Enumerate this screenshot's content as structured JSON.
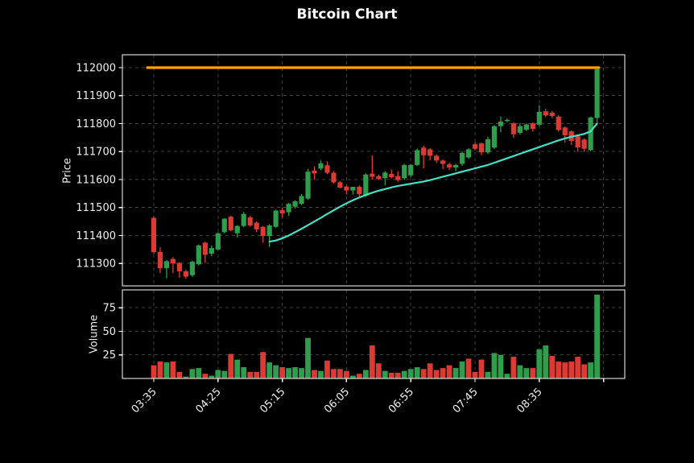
{
  "title": "Bitcoin Chart",
  "chart_data": {
    "type": "candlestick",
    "title": "Bitcoin Chart",
    "style": "dark",
    "grid": true,
    "interval": "5min",
    "x_ticks": {
      "labels": [
        "03:35",
        "04:25",
        "05:15",
        "06:05",
        "06:55",
        "07:45",
        "08:35",
        ""
      ],
      "candle_indices": [
        0,
        10,
        20,
        30,
        40,
        50,
        60,
        70
      ]
    },
    "panels": {
      "price": {
        "ylabel": "Price",
        "ticks": [
          111300,
          111400,
          111500,
          111600,
          111700,
          111800,
          111900,
          112000
        ],
        "ylim": [
          111220,
          112046
        ]
      },
      "volume": {
        "ylabel": "Volume",
        "ticks": [
          25,
          50,
          75
        ],
        "ylim": [
          0,
          94
        ]
      }
    },
    "hline": {
      "value": 112000,
      "color": "#ffa500"
    },
    "ma_line": {
      "color": "#46e0c8",
      "values": [
        null,
        null,
        null,
        null,
        null,
        null,
        null,
        null,
        null,
        null,
        null,
        null,
        null,
        null,
        null,
        null,
        null,
        null,
        111378,
        111382,
        111390,
        111400,
        111412,
        111424,
        111437,
        111450,
        111463,
        111477,
        111490,
        111503,
        111515,
        111526,
        111536,
        111545,
        111553,
        111560,
        111566,
        111572,
        111577,
        111581,
        111585,
        111589,
        111593,
        111598,
        111604,
        111610,
        111616,
        111622,
        111628,
        111634,
        111640,
        111646,
        111652,
        111660,
        111668,
        111676,
        111684,
        111692,
        111700,
        111708,
        111716,
        111724,
        111732,
        111740,
        111747,
        111753,
        111758,
        111763,
        111772,
        111800
      ]
    },
    "series": {
      "open": [
        111463,
        111341,
        111283,
        111316,
        111302,
        111272,
        111258,
        111297,
        111374,
        111335,
        111350,
        111412,
        111467,
        111408,
        111434,
        111465,
        111446,
        111431,
        111398,
        111431,
        111491,
        111483,
        111503,
        111513,
        111532,
        111632,
        111639,
        111651,
        111624,
        111590,
        111575,
        111561,
        111574,
        111542,
        111621,
        111612,
        111605,
        111620,
        111612,
        111605,
        111615,
        111652,
        111714,
        111708,
        111685,
        111668,
        111654,
        111643,
        111656,
        111679,
        111726,
        111729,
        111697,
        111714,
        111791,
        111812,
        111801,
        111767,
        111778,
        111801,
        111796,
        111844,
        111839,
        111825,
        111786,
        111772,
        111755,
        111743,
        111705,
        111820
      ],
      "high": [
        111468,
        111358,
        111312,
        111322,
        111305,
        111278,
        111310,
        111368,
        111378,
        111364,
        111411,
        111462,
        111471,
        111437,
        111484,
        111470,
        111450,
        111434,
        111440,
        111492,
        111500,
        111516,
        111526,
        111548,
        111638,
        111647,
        111668,
        111665,
        111630,
        111595,
        111578,
        111572,
        111578,
        111622,
        111686,
        111618,
        111630,
        111636,
        111630,
        111656,
        111656,
        111711,
        111721,
        111712,
        111690,
        111672,
        111660,
        111656,
        111700,
        111712,
        111734,
        111732,
        111753,
        111794,
        111825,
        111818,
        111805,
        111801,
        111800,
        111805,
        111866,
        111853,
        111845,
        111830,
        111790,
        111775,
        111760,
        111748,
        111824,
        111997
      ],
      "low": [
        111335,
        111266,
        111247,
        111266,
        111249,
        111246,
        111252,
        111293,
        111302,
        111326,
        111348,
        111408,
        111415,
        111393,
        111430,
        111432,
        111412,
        111374,
        111359,
        111428,
        111465,
        111470,
        111497,
        111509,
        111528,
        111599,
        111634,
        111619,
        111585,
        111568,
        111547,
        111546,
        111540,
        111538,
        111600,
        111597,
        111580,
        111604,
        111592,
        111599,
        111609,
        111648,
        111640,
        111669,
        111659,
        111637,
        111634,
        111630,
        111649,
        111674,
        111704,
        111687,
        111691,
        111709,
        111769,
        111805,
        111749,
        111761,
        111773,
        111771,
        111791,
        111823,
        111819,
        111771,
        111732,
        111723,
        111699,
        111699,
        111701,
        111804
      ],
      "close": [
        111341,
        111283,
        111308,
        111300,
        111272,
        111253,
        111306,
        111364,
        111331,
        111355,
        111408,
        111460,
        111419,
        111434,
        111477,
        111436,
        111422,
        111398,
        111436,
        111489,
        111479,
        111513,
        111522,
        111541,
        111628,
        111622,
        111658,
        111624,
        111590,
        111571,
        111561,
        111574,
        111548,
        111618,
        111610,
        111602,
        111625,
        111608,
        111598,
        111652,
        111652,
        111705,
        111687,
        111685,
        111668,
        111656,
        111643,
        111652,
        111695,
        111708,
        111710,
        111697,
        111744,
        111791,
        111807,
        111813,
        111762,
        111791,
        111797,
        111781,
        111842,
        111829,
        111827,
        111777,
        111758,
        111738,
        111715,
        111710,
        111822,
        111995
      ],
      "volume": [
        14,
        18,
        17,
        18,
        7,
        2,
        10,
        11,
        5,
        3,
        9,
        8,
        26,
        20,
        12,
        7,
        7,
        28,
        17,
        14,
        12,
        11,
        12,
        11,
        43,
        9,
        8,
        19,
        10,
        10,
        8,
        3,
        5,
        9,
        35,
        16,
        8,
        6,
        6,
        8,
        10,
        12,
        10,
        16,
        9,
        11,
        14,
        11,
        18,
        21,
        7,
        20,
        7,
        27,
        25,
        5,
        23,
        14,
        11,
        11,
        31,
        35,
        24,
        18,
        17,
        18,
        23,
        15,
        17,
        89
      ],
      "volume_colors": [
        "d",
        "d",
        "u",
        "d",
        "d",
        "u",
        "u",
        "u",
        "d",
        "u",
        "u",
        "u",
        "d",
        "u",
        "u",
        "d",
        "d",
        "d",
        "u",
        "u",
        "d",
        "u",
        "u",
        "u",
        "u",
        "d",
        "u",
        "d",
        "d",
        "d",
        "d",
        "u",
        "d",
        "u",
        "d",
        "d",
        "u",
        "d",
        "d",
        "u",
        "u",
        "u",
        "d",
        "d",
        "d",
        "d",
        "d",
        "u",
        "u",
        "d",
        "d",
        "d",
        "u",
        "u",
        "u",
        "u",
        "d",
        "u",
        "u",
        "d",
        "u",
        "u",
        "d",
        "d",
        "d",
        "d",
        "d",
        "d",
        "u",
        "u"
      ]
    },
    "colors": {
      "up": "#2f9e4c",
      "down": "#dc3b33",
      "ma": "#46e0c8",
      "hline": "#ffa500",
      "grid": "#3f3f3f",
      "spine": "#ffffff",
      "text": "#efefef",
      "background": "#000000"
    }
  }
}
